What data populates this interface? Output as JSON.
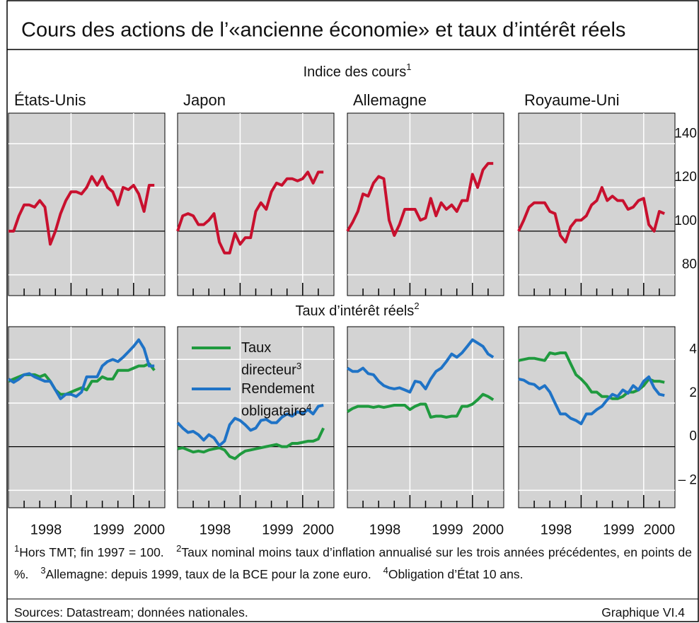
{
  "title": "Cours des actions de l’«ancienne économie» et taux d’intérêt réels",
  "sections": [
    {
      "label": "Indice des cours",
      "note": "1"
    },
    {
      "label": "Taux d’intérêt réels",
      "note": "2"
    }
  ],
  "chart_data": [
    {
      "type": "line",
      "title": "États-Unis",
      "x": [
        1998,
        1998.083,
        1998.167,
        1998.25,
        1998.333,
        1998.417,
        1998.5,
        1998.583,
        1998.667,
        1998.75,
        1998.833,
        1998.917,
        1999,
        1999.083,
        1999.167,
        1999.25,
        1999.333,
        1999.417,
        1999.5,
        1999.583,
        1999.667,
        1999.75,
        1999.833,
        1999.917,
        2000,
        2000.083,
        2000.167,
        2000.25,
        2000.333
      ],
      "xlim": [
        1998,
        2000.5
      ],
      "xticks": [
        1998.25,
        1998.5,
        1998.75,
        1999,
        1999.25,
        1999.5,
        1999.75,
        2000,
        2000.25
      ],
      "ylim": [
        70.5,
        154
      ],
      "yticks": [
        80,
        100,
        120,
        140
      ],
      "reference_line": 100,
      "grid": true,
      "series": [
        {
          "color": "#c8102e",
          "values": [
            100,
            100,
            107,
            112,
            112,
            111,
            114,
            111,
            94,
            100,
            108,
            114,
            118,
            118,
            117,
            120,
            125,
            121,
            125,
            120,
            118,
            112,
            120,
            119,
            121,
            117,
            109,
            121,
            121
          ]
        }
      ]
    },
    {
      "type": "line",
      "title": "Japon",
      "x": [
        1998,
        1998.083,
        1998.167,
        1998.25,
        1998.333,
        1998.417,
        1998.5,
        1998.583,
        1998.667,
        1998.75,
        1998.833,
        1998.917,
        1999,
        1999.083,
        1999.167,
        1999.25,
        1999.333,
        1999.417,
        1999.5,
        1999.583,
        1999.667,
        1999.75,
        1999.833,
        1999.917,
        2000,
        2000.083,
        2000.167,
        2000.25,
        2000.333
      ],
      "xlim": [
        1998,
        2000.5
      ],
      "xticks": [
        1998.25,
        1998.5,
        1998.75,
        1999,
        1999.25,
        1999.5,
        1999.75,
        2000,
        2000.25
      ],
      "ylim": [
        70.5,
        154
      ],
      "yticks": [
        80,
        100,
        120,
        140
      ],
      "reference_line": 100,
      "grid": true,
      "series": [
        {
          "color": "#c8102e",
          "values": [
            100,
            107,
            108,
            107,
            103,
            103,
            105,
            108,
            95,
            90,
            90,
            99,
            94,
            97,
            97,
            109,
            113,
            110,
            118,
            122,
            121,
            124,
            124,
            123,
            124,
            127,
            122,
            127,
            127
          ]
        }
      ]
    },
    {
      "type": "line",
      "title": "Allemagne",
      "x": [
        1998,
        1998.083,
        1998.167,
        1998.25,
        1998.333,
        1998.417,
        1998.5,
        1998.583,
        1998.667,
        1998.75,
        1998.833,
        1998.917,
        1999,
        1999.083,
        1999.167,
        1999.25,
        1999.333,
        1999.417,
        1999.5,
        1999.583,
        1999.667,
        1999.75,
        1999.833,
        1999.917,
        2000,
        2000.083,
        2000.167,
        2000.25,
        2000.333
      ],
      "xlim": [
        1998,
        2000.5
      ],
      "xticks": [
        1998.25,
        1998.5,
        1998.75,
        1999,
        1999.25,
        1999.5,
        1999.75,
        2000,
        2000.25
      ],
      "ylim": [
        70.5,
        154
      ],
      "yticks": [
        80,
        100,
        120,
        140
      ],
      "reference_line": 100,
      "grid": true,
      "series": [
        {
          "color": "#c8102e",
          "values": [
            100,
            104,
            109,
            117,
            116,
            122,
            125,
            124,
            105,
            98,
            103,
            110,
            110,
            110,
            105,
            106,
            115,
            107,
            113,
            110,
            112,
            109,
            114,
            114,
            126,
            120,
            128,
            131,
            131
          ]
        }
      ]
    },
    {
      "type": "line",
      "title": "Royaume-Uni",
      "x": [
        1998,
        1998.083,
        1998.167,
        1998.25,
        1998.333,
        1998.417,
        1998.5,
        1998.583,
        1998.667,
        1998.75,
        1998.833,
        1998.917,
        1999,
        1999.083,
        1999.167,
        1999.25,
        1999.333,
        1999.417,
        1999.5,
        1999.583,
        1999.667,
        1999.75,
        1999.833,
        1999.917,
        2000,
        2000.083,
        2000.167,
        2000.25,
        2000.333
      ],
      "xlim": [
        1998,
        2000.5
      ],
      "xticks": [
        1998.25,
        1998.5,
        1998.75,
        1999,
        1999.25,
        1999.5,
        1999.75,
        2000,
        2000.25
      ],
      "ylim": [
        70.5,
        154
      ],
      "yticks": [
        80,
        100,
        120,
        140
      ],
      "reference_line": 100,
      "grid": true,
      "ytick_labels": "right",
      "series": [
        {
          "color": "#c8102e",
          "values": [
            100,
            105,
            111,
            113,
            113,
            113,
            109,
            108,
            98,
            95,
            102,
            105,
            105,
            107,
            112,
            114,
            120,
            114,
            116,
            114,
            114,
            110,
            111,
            114,
            115,
            103,
            100,
            109,
            108
          ]
        }
      ]
    },
    {
      "type": "line",
      "x": [
        1998,
        1998.083,
        1998.167,
        1998.25,
        1998.333,
        1998.417,
        1998.5,
        1998.583,
        1998.667,
        1998.75,
        1998.833,
        1998.917,
        1999,
        1999.083,
        1999.167,
        1999.25,
        1999.333,
        1999.417,
        1999.5,
        1999.583,
        1999.667,
        1999.75,
        1999.833,
        1999.917,
        2000,
        2000.083,
        2000.167,
        2000.25,
        2000.333
      ],
      "xlim": [
        1998,
        2000.5
      ],
      "xticks": [
        1998.25,
        1998.5,
        1998.75,
        1999,
        1999.25,
        1999.5,
        1999.75,
        2000,
        2000.25
      ],
      "year_labels": [
        {
          "value": 1998.6,
          "label": "1998"
        },
        {
          "value": 1999.6,
          "label": "1999"
        },
        {
          "value": 2000.25,
          "label": "2000"
        }
      ],
      "ylim": [
        -2.8,
        5.5
      ],
      "yticks": [
        -2,
        2,
        4
      ],
      "reference_line": 0,
      "grid": true,
      "series": [
        {
          "color": "#1f9a3e",
          "values": [
            3.0,
            3.1,
            3.2,
            3.3,
            3.3,
            3.3,
            3.2,
            3.3,
            3.0,
            2.6,
            2.4,
            2.4,
            2.5,
            2.6,
            2.7,
            2.6,
            3.0,
            3.0,
            3.2,
            3.1,
            3.1,
            3.5,
            3.5,
            3.5,
            3.6,
            3.7,
            3.7,
            3.8,
            3.5
          ]
        },
        {
          "color": "#1f73c6",
          "values": [
            3.1,
            2.95,
            3.1,
            3.3,
            3.35,
            3.2,
            3.1,
            3.0,
            3.0,
            2.6,
            2.2,
            2.4,
            2.4,
            2.3,
            2.5,
            3.2,
            3.2,
            3.2,
            3.7,
            3.9,
            4.0,
            3.9,
            4.1,
            4.35,
            4.6,
            4.9,
            4.5,
            3.7,
            3.7
          ]
        }
      ]
    },
    {
      "type": "line",
      "legend": "upper-left",
      "x": [
        1998,
        1998.083,
        1998.167,
        1998.25,
        1998.333,
        1998.417,
        1998.5,
        1998.583,
        1998.667,
        1998.75,
        1998.833,
        1998.917,
        1999,
        1999.083,
        1999.167,
        1999.25,
        1999.333,
        1999.417,
        1999.5,
        1999.583,
        1999.667,
        1999.75,
        1999.833,
        1999.917,
        2000,
        2000.083,
        2000.167,
        2000.25,
        2000.333
      ],
      "xlim": [
        1998,
        2000.5
      ],
      "xticks": [
        1998.25,
        1998.5,
        1998.75,
        1999,
        1999.25,
        1999.5,
        1999.75,
        2000,
        2000.25
      ],
      "year_labels": [
        {
          "value": 1998.6,
          "label": "1998"
        },
        {
          "value": 1999.6,
          "label": "1999"
        },
        {
          "value": 2000.25,
          "label": "2000"
        }
      ],
      "ylim": [
        -2.8,
        5.5
      ],
      "yticks": [
        -2,
        2,
        4
      ],
      "reference_line": 0,
      "grid": true,
      "series": [
        {
          "name": "Taux directeur",
          "note": "3",
          "color": "#1f9a3e",
          "values": [
            -0.1,
            -0.05,
            -0.15,
            -0.25,
            -0.2,
            -0.25,
            -0.15,
            -0.1,
            -0.05,
            -0.15,
            -0.45,
            -0.55,
            -0.35,
            -0.2,
            -0.15,
            -0.1,
            -0.05,
            0,
            0.05,
            0.1,
            0,
            0,
            0.15,
            0.15,
            0.2,
            0.25,
            0.25,
            0.35,
            0.85
          ]
        },
        {
          "name": "Rendement obligataire",
          "note": "4",
          "color": "#1f73c6",
          "values": [
            1.1,
            0.85,
            0.65,
            0.7,
            0.55,
            0.3,
            0.55,
            0.4,
            0.05,
            0.25,
            1.0,
            1.3,
            1.2,
            1.0,
            0.75,
            0.85,
            1.2,
            1.25,
            1.1,
            1.1,
            1.35,
            1.5,
            1.4,
            1.6,
            1.5,
            1.7,
            1.5,
            1.85,
            1.9
          ]
        }
      ]
    },
    {
      "type": "line",
      "x": [
        1998,
        1998.083,
        1998.167,
        1998.25,
        1998.333,
        1998.417,
        1998.5,
        1998.583,
        1998.667,
        1998.75,
        1998.833,
        1998.917,
        1999,
        1999.083,
        1999.167,
        1999.25,
        1999.333,
        1999.417,
        1999.5,
        1999.583,
        1999.667,
        1999.75,
        1999.833,
        1999.917,
        2000,
        2000.083,
        2000.167,
        2000.25,
        2000.333
      ],
      "xlim": [
        1998,
        2000.5
      ],
      "xticks": [
        1998.25,
        1998.5,
        1998.75,
        1999,
        1999.25,
        1999.5,
        1999.75,
        2000,
        2000.25
      ],
      "year_labels": [
        {
          "value": 1998.6,
          "label": "1998"
        },
        {
          "value": 1999.6,
          "label": "1999"
        },
        {
          "value": 2000.25,
          "label": "2000"
        }
      ],
      "ylim": [
        -2.8,
        5.5
      ],
      "yticks": [
        -2,
        2,
        4
      ],
      "reference_line": 0,
      "grid": true,
      "series": [
        {
          "color": "#1f9a3e",
          "values": [
            1.6,
            1.75,
            1.85,
            1.85,
            1.85,
            1.8,
            1.85,
            1.8,
            1.85,
            1.9,
            1.9,
            1.9,
            1.7,
            1.85,
            1.95,
            1.95,
            1.35,
            1.4,
            1.4,
            1.35,
            1.4,
            1.4,
            1.85,
            1.85,
            1.95,
            2.15,
            2.4,
            2.3,
            2.15
          ]
        },
        {
          "color": "#1f73c6",
          "values": [
            3.6,
            3.45,
            3.45,
            3.6,
            3.35,
            3.3,
            3.0,
            2.8,
            2.7,
            2.65,
            2.7,
            2.6,
            2.5,
            3.0,
            2.95,
            2.65,
            3.1,
            3.45,
            3.6,
            3.9,
            4.25,
            4.1,
            4.3,
            4.6,
            4.9,
            4.75,
            4.6,
            4.25,
            4.1
          ]
        }
      ]
    },
    {
      "type": "line",
      "x": [
        1998,
        1998.083,
        1998.167,
        1998.25,
        1998.333,
        1998.417,
        1998.5,
        1998.583,
        1998.667,
        1998.75,
        1998.833,
        1998.917,
        1999,
        1999.083,
        1999.167,
        1999.25,
        1999.333,
        1999.417,
        1999.5,
        1999.583,
        1999.667,
        1999.75,
        1999.833,
        1999.917,
        2000,
        2000.083,
        2000.167,
        2000.25,
        2000.333
      ],
      "xlim": [
        1998,
        2000.5
      ],
      "xticks": [
        1998.25,
        1998.5,
        1998.75,
        1999,
        1999.25,
        1999.5,
        1999.75,
        2000,
        2000.25
      ],
      "year_labels": [
        {
          "value": 1998.6,
          "label": "1998"
        },
        {
          "value": 1999.6,
          "label": "1999"
        },
        {
          "value": 2000.25,
          "label": "2000"
        }
      ],
      "ylim": [
        -2.8,
        5.5
      ],
      "yticks": [
        {
          "value": -2,
          "label": "– 2"
        },
        0,
        2,
        4
      ],
      "reference_line": 0,
      "grid": true,
      "ytick_labels": "right",
      "series": [
        {
          "color": "#1f9a3e",
          "values": [
            3.95,
            4.0,
            4.05,
            4.05,
            4.0,
            3.95,
            4.3,
            4.25,
            4.3,
            4.3,
            3.8,
            3.3,
            3.1,
            2.85,
            2.5,
            2.5,
            2.3,
            2.3,
            2.2,
            2.2,
            2.3,
            2.5,
            2.5,
            2.6,
            2.8,
            3.1,
            3.0,
            3.0,
            2.95
          ]
        },
        {
          "color": "#1f73c6",
          "values": [
            3.1,
            3.05,
            2.9,
            2.85,
            2.65,
            2.8,
            2.5,
            2.0,
            1.5,
            1.5,
            1.3,
            1.2,
            1.05,
            1.5,
            1.5,
            1.7,
            1.85,
            2.15,
            2.4,
            2.3,
            2.6,
            2.45,
            2.8,
            2.6,
            3.0,
            3.2,
            2.7,
            2.4,
            2.35
          ]
        }
      ]
    }
  ],
  "footnotes": [
    {
      "mark": "1",
      "text": "Hors TMT; fin 1997 = 100."
    },
    {
      "mark": "2",
      "text": "Taux nominal moins taux d’inflation annualisé sur les trois années précédentes, en points de %."
    },
    {
      "mark": "3",
      "text": "Allemagne: depuis 1999, taux de la BCE pour la zone euro."
    },
    {
      "mark": "4",
      "text": "Obligation d’État 10 ans."
    }
  ],
  "source": "Sources: Datastream; données nationales.",
  "figure_id": "Graphique VI.4"
}
